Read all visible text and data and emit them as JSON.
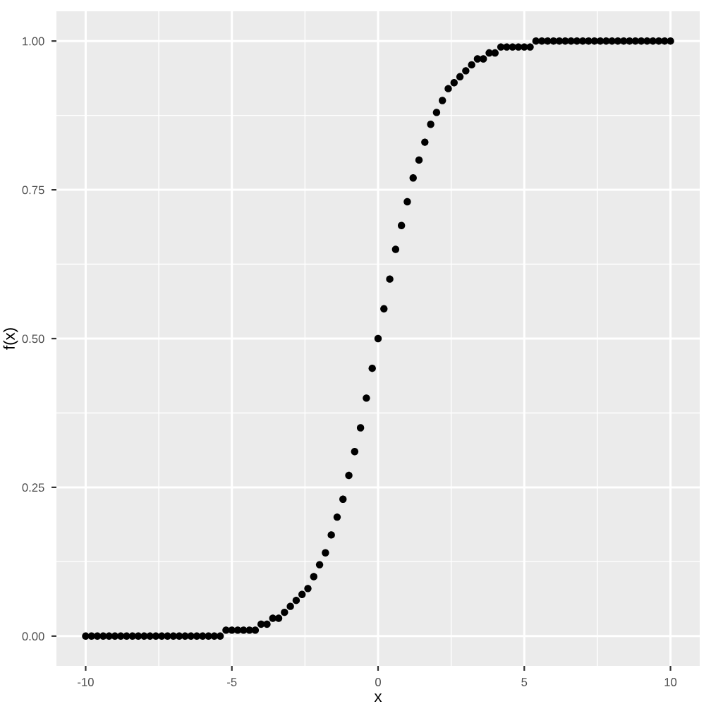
{
  "chart_data": {
    "type": "scatter",
    "xlabel": "x",
    "ylabel": "f(x)",
    "x": [
      -10,
      -9.8,
      -9.6,
      -9.4,
      -9.2,
      -9,
      -8.8,
      -8.6,
      -8.4,
      -8.2,
      -8,
      -7.8,
      -7.6,
      -7.4,
      -7.2,
      -7,
      -6.8,
      -6.6,
      -6.4,
      -6.2,
      -6,
      -5.8,
      -5.6,
      -5.4,
      -5.2,
      -5,
      -4.8,
      -4.6,
      -4.4,
      -4.2,
      -4,
      -3.8,
      -3.6,
      -3.4,
      -3.2,
      -3,
      -2.8,
      -2.6,
      -2.4,
      -2.2,
      -2,
      -1.8,
      -1.6,
      -1.4,
      -1.2,
      -1,
      -0.8,
      -0.6,
      -0.4,
      -0.2,
      0,
      0.2,
      0.4,
      0.6,
      0.8,
      1,
      1.2,
      1.4,
      1.6,
      1.8,
      2,
      2.2,
      2.4,
      2.6,
      2.8,
      3,
      3.2,
      3.4,
      3.6,
      3.8,
      4,
      4.2,
      4.4,
      4.6,
      4.8,
      5,
      5.2,
      5.4,
      5.6,
      5.8,
      6,
      6.2,
      6.4,
      6.6,
      6.8,
      7,
      7.2,
      7.4,
      7.6,
      7.8,
      8,
      8.2,
      8.4,
      8.6,
      8.8,
      9,
      9.2,
      9.4,
      9.6,
      9.8,
      10
    ],
    "series": [
      {
        "color": "#000000",
        "values": [
          0,
          0,
          0,
          0,
          0,
          0,
          0,
          0,
          0,
          0,
          0,
          0,
          0,
          0,
          0,
          0,
          0,
          0,
          0,
          0,
          0,
          0,
          0,
          0,
          0.01,
          0.01,
          0.01,
          0.01,
          0.01,
          0.01,
          0.02,
          0.02,
          0.03,
          0.03,
          0.04,
          0.05,
          0.06,
          0.07,
          0.08,
          0.1,
          0.12,
          0.14,
          0.17,
          0.2,
          0.23,
          0.27,
          0.31,
          0.35,
          0.4,
          0.45,
          0.5,
          0.55,
          0.6,
          0.65,
          0.69,
          0.73,
          0.77,
          0.8,
          0.83,
          0.86,
          0.88,
          0.9,
          0.92,
          0.93,
          0.94,
          0.95,
          0.96,
          0.97,
          0.97,
          0.98,
          0.98,
          0.99,
          0.99,
          0.99,
          0.99,
          0.99,
          0.99,
          1,
          1,
          1,
          1,
          1,
          1,
          1,
          1,
          1,
          1,
          1,
          1,
          1,
          1,
          1,
          1,
          1,
          1,
          1,
          1,
          1,
          1,
          1,
          1
        ]
      }
    ],
    "xlim": [
      -11,
      11
    ],
    "ylim": [
      -0.05,
      1.05
    ],
    "xticks": [
      -10,
      -5,
      0,
      5,
      10
    ],
    "yticks": [
      {
        "value": 0,
        "label": "0.00"
      },
      {
        "value": 0.25,
        "label": "0.25"
      },
      {
        "value": 0.5,
        "label": "0.50"
      },
      {
        "value": 0.75,
        "label": "0.75"
      },
      {
        "value": 1,
        "label": "1.00"
      }
    ],
    "grid": true,
    "marker": "circle"
  }
}
